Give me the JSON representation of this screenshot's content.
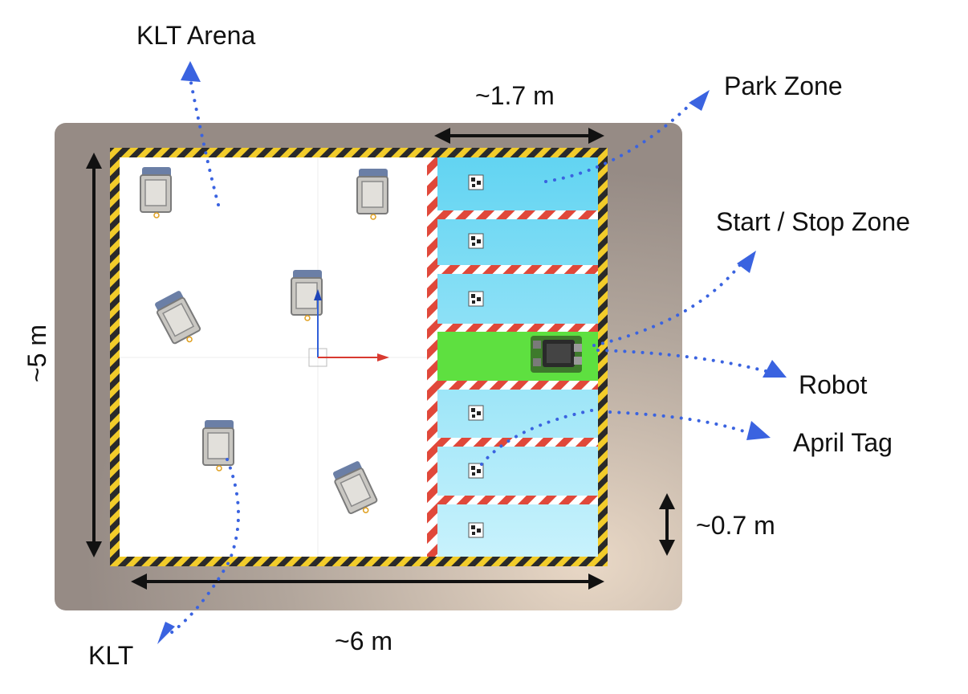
{
  "labels": {
    "klt_arena": "KLT Arena",
    "park_zone": "Park Zone",
    "start_stop_zone": "Start / Stop Zone",
    "robot": "Robot",
    "april_tag": "April Tag",
    "klt": "KLT"
  },
  "dimensions": {
    "zone_width": "~1.7 m",
    "arena_height": "~5 m",
    "zone_height": "~0.7 m",
    "arena_width": "~6 m"
  },
  "colors": {
    "pointer_blue": "#3a63e0",
    "park_zone": "#6fd6f2",
    "start_zone": "#5ee040",
    "hazard_yellow": "#f2cc2a",
    "floor": "#9c918b",
    "klt_box": "#6b7fa6"
  }
}
